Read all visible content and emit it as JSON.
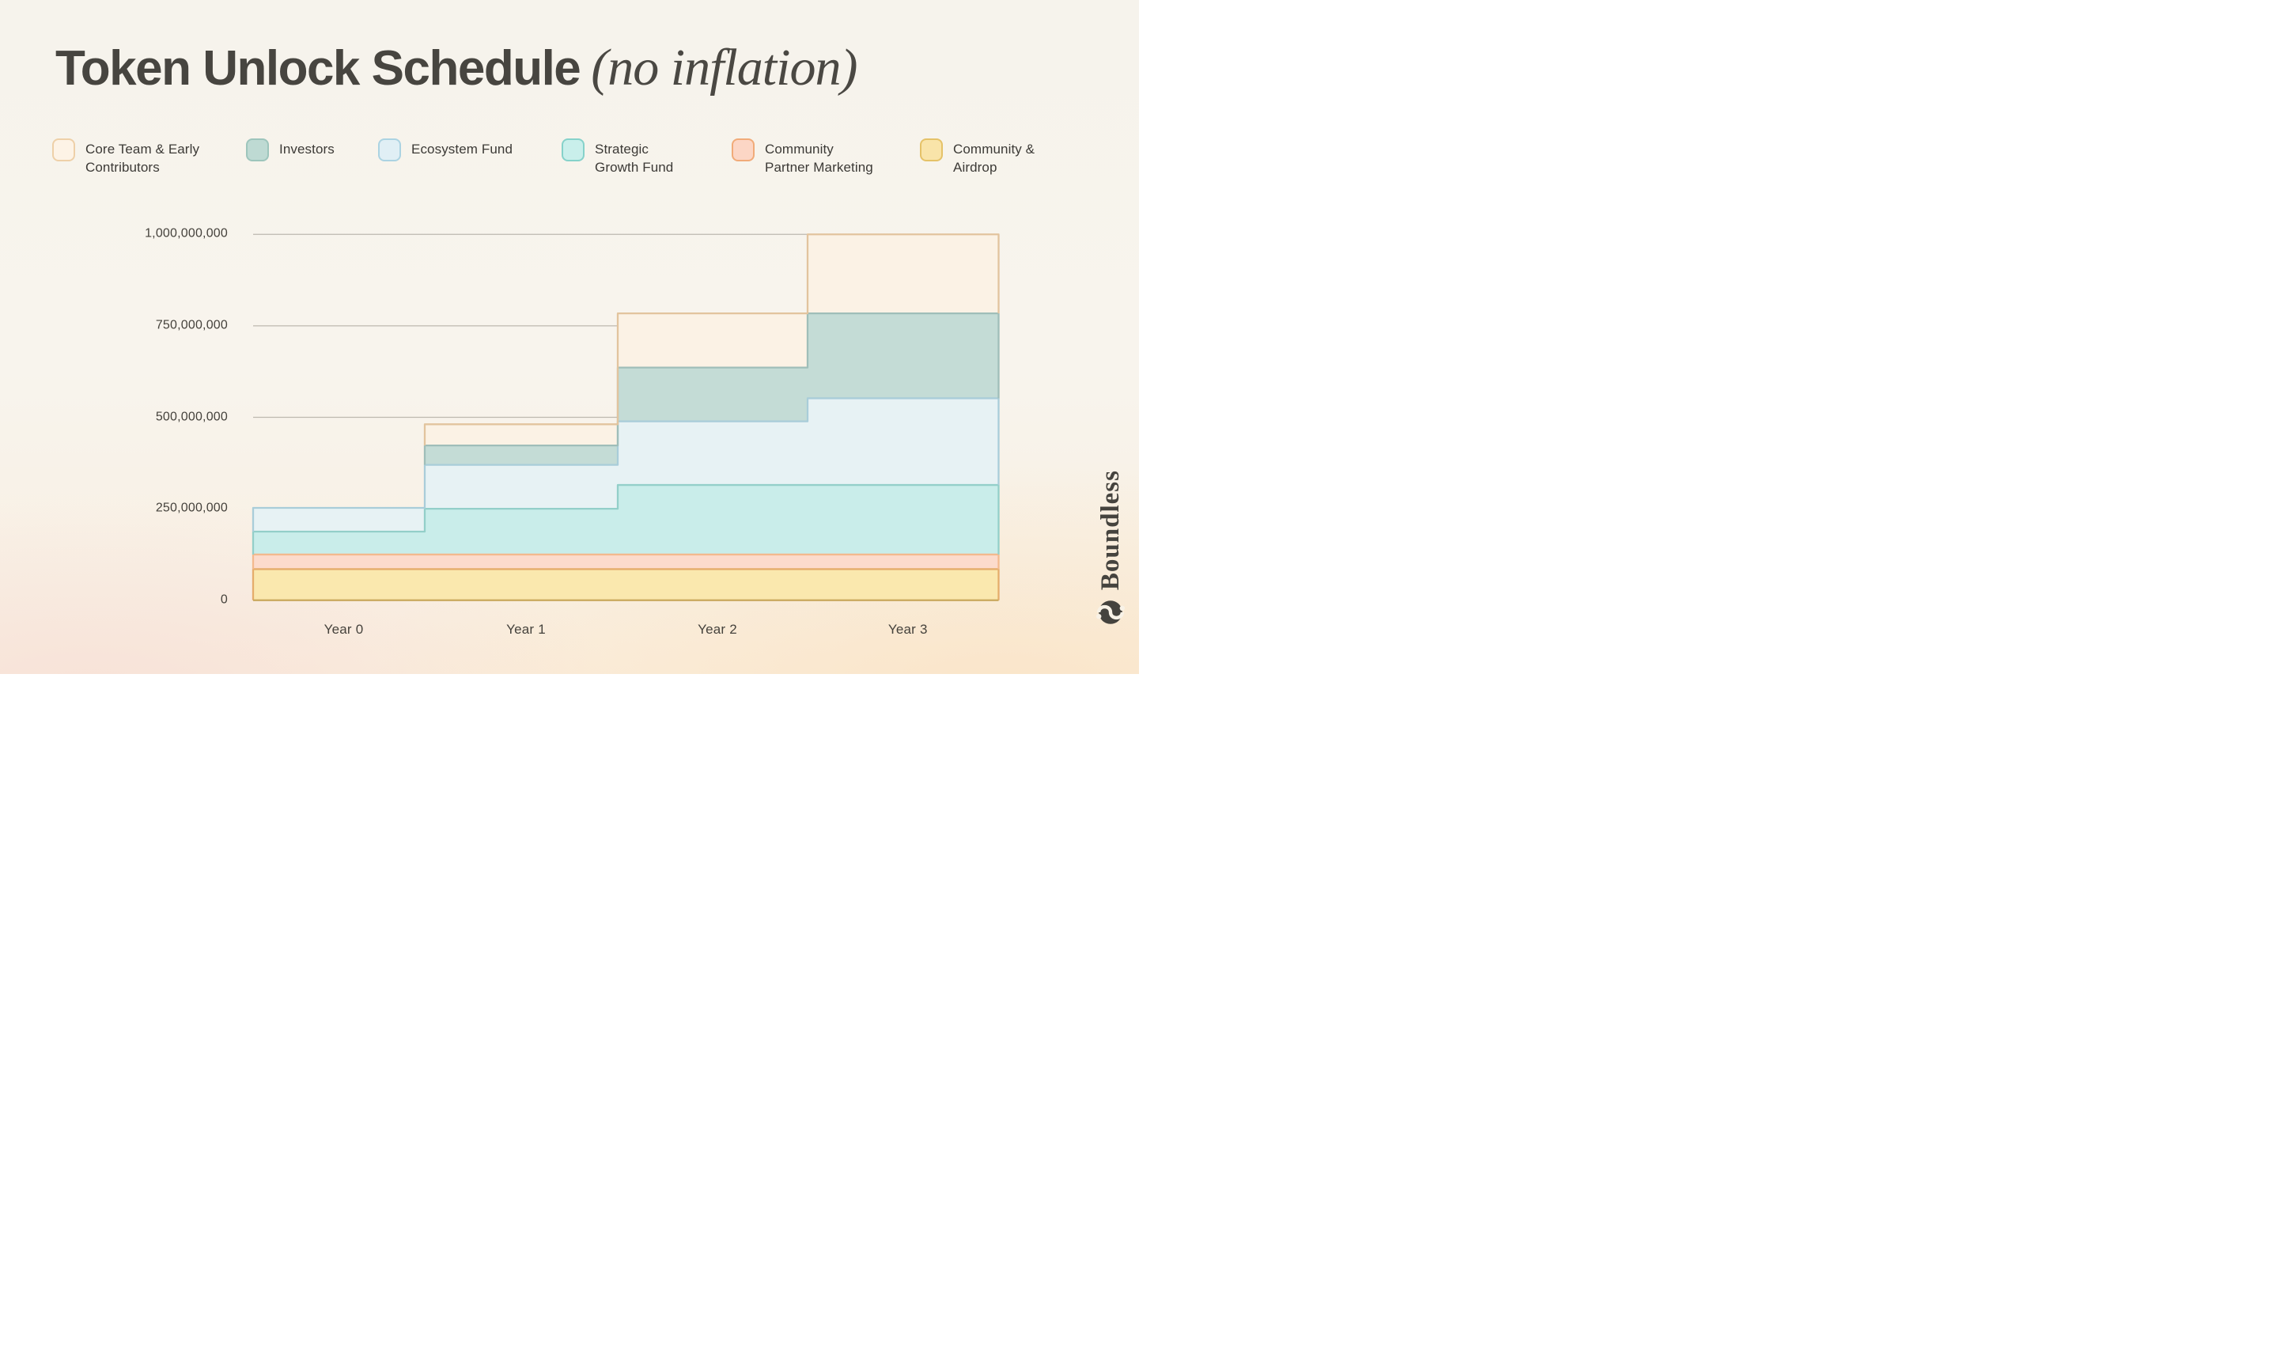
{
  "title": {
    "main": "Token Unlock Schedule",
    "annotation": "(no inflation)"
  },
  "brand": {
    "wordmark": "Boundless"
  },
  "colors": {
    "background_top": "#f6f3ec",
    "background_bottom_peach": "#faeedd",
    "title_text": "#474540",
    "axis_text": "#45423c",
    "legend_text": "#3c3a36",
    "gridline": "#bdb8af",
    "axis_baseline": "#c9a85c",
    "brand_mark": "#45433e"
  },
  "legend": {
    "position": "top",
    "items": [
      {
        "name": "core-team",
        "lines": [
          "Core Team & Early",
          "Contributors"
        ],
        "fill": "#fdf3e6",
        "border": "#eed0a8"
      },
      {
        "name": "investors",
        "lines": [
          "Investors"
        ],
        "fill": "#bedad3",
        "border": "#9dc5bc"
      },
      {
        "name": "ecosystem",
        "lines": [
          "Ecosystem Fund"
        ],
        "fill": "#e0eff5",
        "border": "#abd3e2"
      },
      {
        "name": "strategic",
        "lines": [
          "Strategic",
          "Growth Fund"
        ],
        "fill": "#c9efeb",
        "border": "#86d2ca"
      },
      {
        "name": "marketing",
        "lines": [
          "Community",
          "Partner Marketing"
        ],
        "fill": "#fcd6c5",
        "border": "#f1ab79"
      },
      {
        "name": "airdrop",
        "lines": [
          "Community &",
          "Airdrop"
        ],
        "fill": "#f9e4a9",
        "border": "#e5c268"
      }
    ]
  },
  "chart_data": {
    "type": "area",
    "variant": "stacked-step-area",
    "title": "Token Unlock Schedule",
    "subtitle": "(no inflation)",
    "categories": [
      "Year 0",
      "Year 1",
      "Year 2",
      "Year 3"
    ],
    "xlabel": "",
    "ylabel": "",
    "ylim": [
      0,
      1000000000
    ],
    "total_supply": 1000000000,
    "grid": true,
    "y_ticks": [
      {
        "value": 1000000000,
        "label": "1,000,000,000"
      },
      {
        "value": 750000000,
        "label": "750,000,000"
      },
      {
        "value": 500000000,
        "label": "500,000,000"
      },
      {
        "value": 250000000,
        "label": "250,000,000"
      },
      {
        "value": 0,
        "label": "0"
      }
    ],
    "series_note": "cumulative unlocked tokens at each year step, stacked bottom-to-top",
    "series": [
      {
        "name": "Community & Airdrop",
        "fill": "#fae8ae",
        "stroke": "#e5ad6b",
        "values": [
          85000000,
          85000000,
          85000000,
          85000000
        ]
      },
      {
        "name": "Community Partner Marketing",
        "fill": "#fcdbcc",
        "stroke": "#f3b98e",
        "values": [
          40000000,
          40000000,
          40000000,
          40000000
        ]
      },
      {
        "name": "Strategic Growth Fund",
        "fill": "#c9edea",
        "stroke": "#93cfc9",
        "values": [
          62500000,
          125000000,
          190000000,
          190000000
        ]
      },
      {
        "name": "Ecosystem Fund",
        "fill": "#e7f2f4",
        "stroke": "#a9cdd9",
        "values": [
          65000000,
          120000000,
          174000000,
          237000000
        ]
      },
      {
        "name": "Investors",
        "fill": "#c4dcd6",
        "stroke": "#9fbeb9",
        "values": [
          0,
          53000000,
          147000000,
          232000000
        ]
      },
      {
        "name": "Core Team & Early Contributors",
        "fill": "#fbf2e5",
        "stroke": "#e2c49e",
        "values": [
          0,
          58000000,
          148000000,
          216000000
        ]
      }
    ]
  }
}
